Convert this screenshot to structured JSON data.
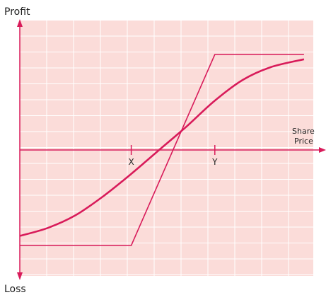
{
  "chart_data": {
    "type": "line",
    "y_axis_top_label": "Profit",
    "y_axis_bottom_label": "Loss",
    "x_axis_label_line1": "Share",
    "x_axis_label_line2": "Price",
    "tick_labels": [
      "X",
      "Y"
    ],
    "xlim": [
      0,
      10
    ],
    "ylim": [
      -4,
      4
    ],
    "grid": true,
    "colors": {
      "background": "#fbdcd9",
      "grid": "#ffffff",
      "axis": "#d81b5a",
      "series": "#d81b5a"
    },
    "series": [
      {
        "x": [
          0,
          4,
          7,
          10.2
        ],
        "y": [
          -3.0,
          -3.0,
          3.0,
          3.0
        ]
      },
      {
        "x": [
          0,
          1,
          2,
          3,
          4,
          5,
          6,
          7,
          8,
          9,
          10.2
        ],
        "y": [
          -2.7,
          -2.45,
          -2.05,
          -1.45,
          -0.75,
          0,
          0.75,
          1.55,
          2.2,
          2.6,
          2.85
        ]
      }
    ]
  }
}
